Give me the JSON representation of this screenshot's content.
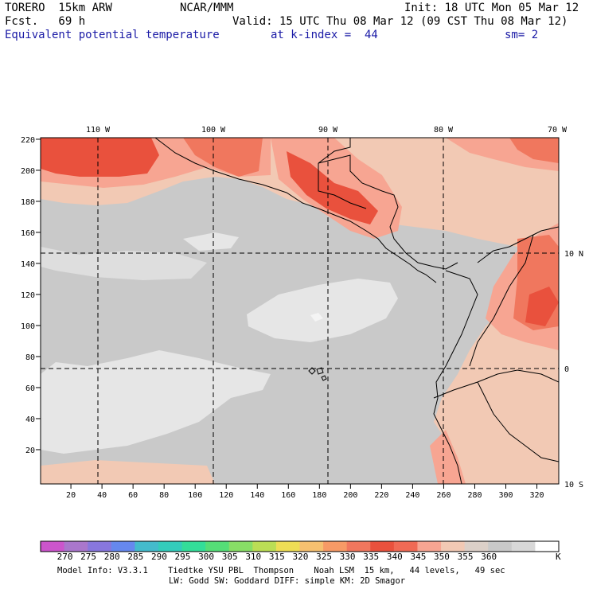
{
  "header": {
    "model": "TORERO  15km ARW",
    "center": "NCAR/MMM",
    "init": "Init: 18 UTC Mon 05 Mar 12",
    "fcst": "Fcst.   69 h",
    "valid": "Valid: 15 UTC Thu 08 Mar 12 (09 CST Thu 08 Mar 12)",
    "field": "Equivalent potential temperature",
    "level": "at k-index =  44",
    "smooth": "sm= 2"
  },
  "map": {
    "lon_labels": [
      "110 W",
      "100 W",
      "90 W",
      "80 W",
      "70 W"
    ],
    "lat_labels": [
      "10 N",
      "0",
      "10 S"
    ],
    "y_ticks": [
      "220",
      "200",
      "180",
      "160",
      "140",
      "120",
      "100",
      "80",
      "60",
      "40",
      "20"
    ],
    "x_ticks": [
      "20",
      "40",
      "60",
      "80",
      "100",
      "120",
      "140",
      "160",
      "180",
      "200",
      "220",
      "240",
      "260",
      "280",
      "300",
      "320"
    ],
    "colors": {
      "background": "#c9c9c9",
      "light_gray": "#e6e6e6",
      "white": "#f4f4f4",
      "peach_light": "#f2c9b4",
      "salmon": "#f7a592",
      "orange_red": "#f0775e",
      "red": "#e9513d"
    }
  },
  "colorbar": {
    "colors": [
      "#cc55cc",
      "#aa77cc",
      "#8877dd",
      "#6688ee",
      "#44bbcc",
      "#33ccbb",
      "#33dd99",
      "#55dd77",
      "#88dd66",
      "#bbdd55",
      "#eedd55",
      "#f6c070",
      "#f79a66",
      "#f0775e",
      "#e9513d",
      "#f06a55",
      "#f7a592",
      "#f2c9b4",
      "#dcd0c8",
      "#c9c9c9",
      "#d8d8d8",
      "#ffffff"
    ],
    "labels": [
      "270",
      "275",
      "280",
      "285",
      "290",
      "295",
      "300",
      "305",
      "310",
      "315",
      "320",
      "325",
      "330",
      "335",
      "340",
      "345",
      "350",
      "355",
      "360"
    ],
    "unit": "K"
  },
  "footer": {
    "line1": "Model Info: V3.3.1    Tiedtke YSU PBL  Thompson    Noah LSM  15 km,   44 levels,   49 sec",
    "line2": "LW: Godd SW: Goddard DIFF: simple KM: 2D Smagor"
  }
}
